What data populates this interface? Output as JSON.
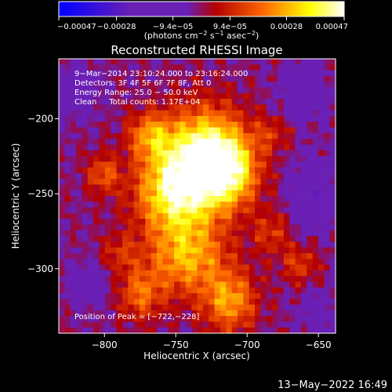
{
  "chart_data": {
    "type": "heatmap",
    "title": "Reconstructed RHESSI Image",
    "xlabel": "Heliocentric X (arcsec)",
    "ylabel": "Heliocentric Y (arcsec)",
    "xlim": [
      -832,
      -638
    ],
    "ylim": [
      -343,
      -160
    ],
    "x_ticks": [
      -800,
      -750,
      -700,
      -650
    ],
    "x_tick_labels": [
      "−800",
      "−750",
      "−700",
      "−650"
    ],
    "y_ticks": [
      -200,
      -250,
      -300
    ],
    "y_tick_labels": [
      "−200",
      "−250",
      "−300"
    ],
    "colorbar": {
      "range": [
        -0.00047,
        0.00047
      ],
      "ticks": [
        -0.00047,
        -0.00028,
        -9.4e-05,
        9.4e-05,
        0.00028,
        0.00047
      ],
      "tick_labels": [
        "−0.00047",
        "−0.00028",
        "−9.4e−05",
        "9.4e−05",
        "0.00028",
        "0.00047"
      ],
      "units_prefix": "(photons cm",
      "units_exp1": "−2",
      "units_mid": " s",
      "units_exp2": "−1",
      "units_mid2": " asec",
      "units_exp3": "−2",
      "units_suffix": ")",
      "colors": [
        "#0000ff",
        "#6a1fb5",
        "#6a1fb5",
        "#b50000",
        "#ff6a00",
        "#ffff00",
        "#ffffff"
      ]
    },
    "annotations": [
      "9−Mar−2014 23:10:24.000 to 23:16:24.000",
      "Detectors: 3F 4F 5F 6F 7F 8F, Att 0",
      "Energy Range: 25.0 − 50.0 keV",
      "Clean     Total counts: 1.17E+04"
    ],
    "peak_label": "Position of Peak = [−722,−228]",
    "peak": [
      -722,
      -228
    ],
    "sources": [
      {
        "x": -729,
        "y": -225,
        "amp": 0.00047,
        "sx": 20,
        "sy": 22
      },
      {
        "x": -752,
        "y": -249,
        "amp": 0.00036,
        "sx": 19,
        "sy": 19
      },
      {
        "x": -712,
        "y": -236,
        "amp": 0.00026,
        "sx": 14,
        "sy": 16
      },
      {
        "x": -742,
        "y": -292,
        "amp": 0.00029,
        "sx": 20,
        "sy": 18
      },
      {
        "x": -768,
        "y": -211,
        "amp": 0.00024,
        "sx": 11,
        "sy": 11
      },
      {
        "x": -712,
        "y": -322,
        "amp": 0.00027,
        "sx": 13,
        "sy": 14
      },
      {
        "x": -775,
        "y": -317,
        "amp": 0.0002,
        "sx": 11,
        "sy": 12
      },
      {
        "x": -801,
        "y": -237,
        "amp": 0.00019,
        "sx": 8,
        "sy": 9
      },
      {
        "x": -663,
        "y": -297,
        "amp": 0.00015,
        "sx": 9,
        "sy": 9
      },
      {
        "x": -683,
        "y": -276,
        "amp": 0.00014,
        "sx": 9,
        "sy": 10
      },
      {
        "x": -790,
        "y": -290,
        "amp": 0.00012,
        "sx": 9,
        "sy": 9
      },
      {
        "x": -683,
        "y": -210,
        "amp": 0.00011,
        "sx": 9,
        "sy": 8
      },
      {
        "x": -655,
        "y": -250,
        "amp": -0.0002,
        "sx": 10,
        "sy": 15
      },
      {
        "x": -660,
        "y": -182,
        "amp": -0.00018,
        "sx": 10,
        "sy": 12
      },
      {
        "x": -820,
        "y": -182,
        "amp": -0.00015,
        "sx": 10,
        "sy": 10
      },
      {
        "x": -810,
        "y": -310,
        "amp": -0.00012,
        "sx": 10,
        "sy": 10
      },
      {
        "x": -650,
        "y": -330,
        "amp": -0.00012,
        "sx": 8,
        "sy": 10
      }
    ],
    "background": -2e-05,
    "texture_amplitude": 9e-05
  },
  "timestamp": "13−May−2022 16:49"
}
